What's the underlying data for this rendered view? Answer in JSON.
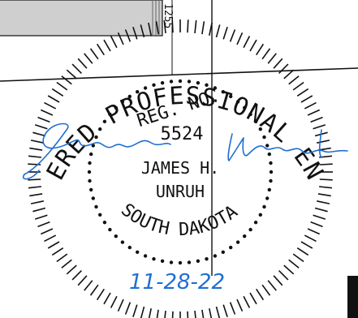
{
  "seal": {
    "outer_text": "REGISTERED PROFESSIONAL ENGINEER",
    "outer_bottom_text": "SOUTH DAKOTA",
    "reg_label": "REG. NO.",
    "reg_number": "5524",
    "name_first": "JAMES H.",
    "name_last": "UNRUH",
    "signature": "James Unruh",
    "date": "11-28-22"
  },
  "drawing": {
    "vertical_label": "1255"
  },
  "colors": {
    "ink": "#111111",
    "signature_blue": "#1f6fd1",
    "gray_fill": "#cfcfcf"
  }
}
